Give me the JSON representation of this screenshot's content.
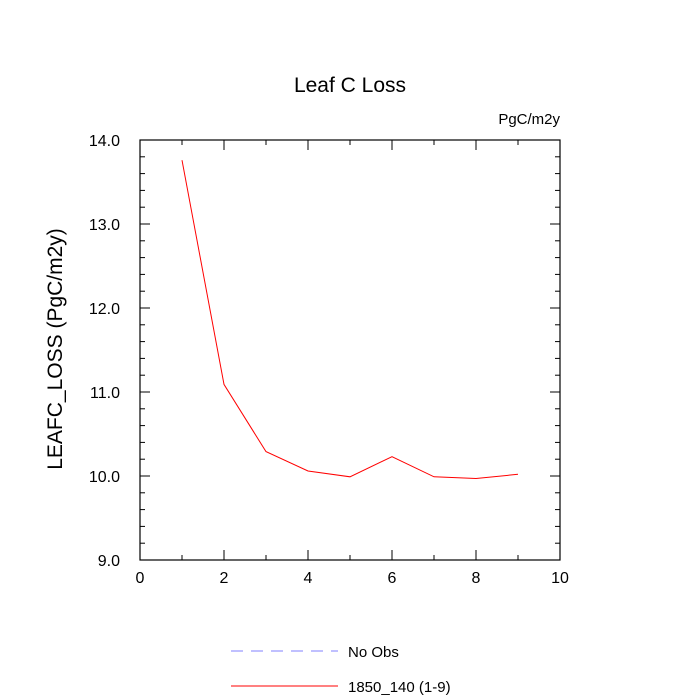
{
  "chart_data": {
    "type": "line",
    "title": "Leaf C Loss",
    "units_label": "PgC/m2y",
    "ylabel": "LEAFC_LOSS  (PgC/m2y)",
    "xlabel": "",
    "xlim": [
      0,
      10
    ],
    "ylim": [
      9.0,
      14.0
    ],
    "x_ticks": [
      0,
      2,
      4,
      6,
      8,
      10
    ],
    "x_tick_labels": [
      "0",
      "2",
      "4",
      "6",
      "8",
      "10"
    ],
    "x_minor_step": 1,
    "y_ticks": [
      9.0,
      10.0,
      11.0,
      12.0,
      13.0,
      14.0
    ],
    "y_tick_labels": [
      "9.0",
      "10.0",
      "11.0",
      "12.0",
      "13.0",
      "14.0"
    ],
    "y_minor_step": 0.2,
    "grid": false,
    "legend_position": "bottom",
    "series": [
      {
        "name": "1850_140 (1-9)",
        "color": "#ff0000",
        "dash": "solid",
        "x": [
          1,
          2,
          3,
          4,
          5,
          6,
          7,
          8,
          9
        ],
        "values": [
          13.76,
          11.09,
          10.29,
          10.06,
          9.99,
          10.23,
          9.99,
          9.97,
          10.02
        ]
      }
    ],
    "legend": [
      {
        "label": "No Obs",
        "color": "#8080ff",
        "dash": "dashed"
      },
      {
        "label": "1850_140 (1-9)",
        "color": "#ff0000",
        "dash": "solid"
      }
    ]
  }
}
